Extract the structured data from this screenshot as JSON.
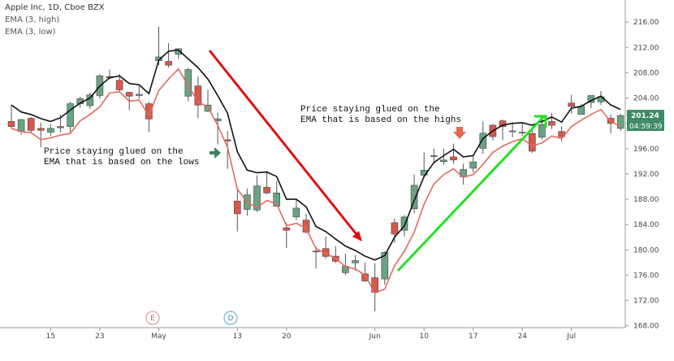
{
  "chart_data": {
    "type": "candlestick",
    "title": "Apple Inc, 1D, Cboe BZX",
    "indicators": [
      "EMA (3, high)",
      "EMA (3, low)"
    ],
    "annotations": [
      "Price staying glued on the",
      "EMA that is based on the lows",
      "Price staying glued on the",
      "EMA that is based on the highs"
    ],
    "events": [
      "E",
      "D"
    ],
    "countdown": "04:59:39",
    "categories": [
      null,
      null,
      null,
      null,
      "15",
      null,
      null,
      null,
      null,
      "23",
      null,
      null,
      null,
      null,
      null,
      "May",
      null,
      null,
      null,
      null,
      null,
      null,
      null,
      "13",
      null,
      null,
      null,
      null,
      "20",
      null,
      null,
      null,
      null,
      null,
      null,
      null,
      null,
      "Jun",
      null,
      null,
      null,
      null,
      "10",
      null,
      null,
      null,
      null,
      "17",
      null,
      null,
      null,
      null,
      "24",
      null,
      null,
      null,
      null,
      "Jul",
      null,
      null,
      null,
      null,
      null
    ],
    "open": [
      200.3,
      198.7,
      200.8,
      199.2,
      198.6,
      199.5,
      199.5,
      203.1,
      202.8,
      204.4,
      207.4,
      206.8,
      204.9,
      204.4,
      203.1,
      209.9,
      209.8,
      210.9,
      204.3,
      205.9,
      201.9,
      200.4,
      197.4,
      187.7,
      186.4,
      186.3,
      189.9,
      186.9,
      183.5,
      185.2,
      184.7,
      179.8,
      180.2,
      179.0,
      176.4,
      177.95,
      176.2,
      175.6,
      175.4,
      184.3,
      183.1,
      186.5,
      191.8,
      194.9,
      193.95,
      194.7,
      191.55,
      192.9,
      196.05,
      199.7,
      200.4,
      198.8,
      198.5,
      198.4,
      197.8,
      200.3,
      198.7,
      203.2,
      201.4,
      203.3,
      203.4,
      200.8,
      199.2
    ],
    "high": [
      202.9,
      200.7,
      201.0,
      200.1,
      199.9,
      201.4,
      203.4,
      204.2,
      204.9,
      207.8,
      208.5,
      207.8,
      205.0,
      205.9,
      203.4,
      215.3,
      212.7,
      211.8,
      208.8,
      207.4,
      205.3,
      201.7,
      198.8,
      189.5,
      189.7,
      191.8,
      192.5,
      190.9,
      184.3,
      188.0,
      185.7,
      180.5,
      182.1,
      180.6,
      179.4,
      179.2,
      177.99,
      177.9,
      179.8,
      184.99,
      185.5,
      191.9,
      195.4,
      196.0,
      195.97,
      196.8,
      193.6,
      194.96,
      200.3,
      199.9,
      200.6,
      200.2,
      200.2,
      199.3,
      200.99,
      201.6,
      199.5,
      204.5,
      203.1,
      204.4,
      205.1,
      201.4,
      201.5
    ],
    "low": [
      199.2,
      198.2,
      198.4,
      196.2,
      198.0,
      198.6,
      198.6,
      202.5,
      202.3,
      203.9,
      207.0,
      205.1,
      202.1,
      203.9,
      198.6,
      209.2,
      208.8,
      210.2,
      203.5,
      200.8,
      201.8,
      196.7,
      192.8,
      182.9,
      185.4,
      186.0,
      188.8,
      186.8,
      180.3,
      184.7,
      182.6,
      177.0,
      178.6,
      177.9,
      176.0,
      176.7,
      174.99,
      170.3,
      174.5,
      181.1,
      182.1,
      185.8,
      191.6,
      193.6,
      193.4,
      193.6,
      190.3,
      192.2,
      195.2,
      197.3,
      197.35,
      197.8,
      198.0,
      195.3,
      197.4,
      199.1,
      197.1,
      201.5,
      201.4,
      202.4,
      202.9,
      198.4,
      198.8
    ],
    "close": [
      199.5,
      200.6,
      198.9,
      198.9,
      199.2,
      199.3,
      203.1,
      203.9,
      204.5,
      207.5,
      207.2,
      205.3,
      204.3,
      204.6,
      200.7,
      210.5,
      209.2,
      211.8,
      208.5,
      202.9,
      202.9,
      200.7,
      197.2,
      185.7,
      188.7,
      190.1,
      189.0,
      189.0,
      183.1,
      186.6,
      182.8,
      179.7,
      178.97,
      178.2,
      177.4,
      178.3,
      175.07,
      173.3,
      179.6,
      182.5,
      185.2,
      190.2,
      192.6,
      194.8,
      194.2,
      194.2,
      192.7,
      193.9,
      198.45,
      197.9,
      199.5,
      198.8,
      198.6,
      195.6,
      199.8,
      199.7,
      197.9,
      202.7,
      202.7,
      204.4,
      204.2,
      200.0,
      201.24
    ],
    "up_color": "#6aa283",
    "down_color": "#d9574c",
    "series": [
      {
        "name": "EMA (3, high)",
        "color": "#111111",
        "values": [
          202.9,
          201.8,
          201.4,
          200.75,
          200.3,
          200.9,
          202.1,
          203.2,
          204.0,
          205.9,
          207.2,
          207.5,
          206.3,
          206.1,
          204.7,
          210.0,
          211.4,
          211.6,
          210.2,
          208.8,
          207.0,
          204.4,
          201.6,
          195.5,
          192.6,
          192.2,
          192.3,
          191.6,
          188.0,
          188.0,
          186.8,
          183.7,
          182.9,
          181.7,
          180.6,
          179.9,
          179.0,
          178.4,
          179.1,
          182.0,
          183.8,
          187.8,
          191.6,
          193.8,
          194.9,
          195.9,
          194.7,
          194.9,
          197.6,
          198.8,
          199.7,
          200.0,
          200.1,
          199.7,
          200.3,
          201.0,
          200.2,
          202.4,
          202.7,
          203.6,
          204.3,
          202.9,
          202.2
        ]
      },
      {
        "name": "EMA (3, low)",
        "color": "#e06a5e",
        "values": [
          199.2,
          198.7,
          198.55,
          197.4,
          197.7,
          198.15,
          198.4,
          200.4,
          201.4,
          202.6,
          204.8,
          205.0,
          203.5,
          203.7,
          201.2,
          205.2,
          207.0,
          208.6,
          206.0,
          203.4,
          202.6,
          199.7,
          196.2,
          189.6,
          187.5,
          186.7,
          187.8,
          187.3,
          183.8,
          184.2,
          183.4,
          180.2,
          179.4,
          178.7,
          177.3,
          177.0,
          176.0,
          173.2,
          173.8,
          177.5,
          179.8,
          182.8,
          187.2,
          190.4,
          191.9,
          192.8,
          191.5,
          191.9,
          193.5,
          195.4,
          196.4,
          197.1,
          197.6,
          196.4,
          196.9,
          198.0,
          197.6,
          199.5,
          200.5,
          201.4,
          202.2,
          200.3,
          199.5
        ]
      }
    ],
    "ylim": [
      167.7,
      219.5
    ],
    "yticks": [
      {
        "value": 168,
        "label": "168.00"
      },
      {
        "value": 172,
        "label": "172.00"
      },
      {
        "value": 176,
        "label": "176.00"
      },
      {
        "value": 180,
        "label": "180.00"
      },
      {
        "value": 184,
        "label": "184.00"
      },
      {
        "value": 188,
        "label": "188.00"
      },
      {
        "value": 192,
        "label": "192.00"
      },
      {
        "value": 196,
        "label": "196.00"
      },
      {
        "value": 200,
        "label": "200.00"
      },
      {
        "value": 204,
        "label": "204.00"
      },
      {
        "value": 208,
        "label": "208.00"
      },
      {
        "value": 212,
        "label": "212.00"
      },
      {
        "value": 216,
        "label": "216.00"
      }
    ]
  }
}
